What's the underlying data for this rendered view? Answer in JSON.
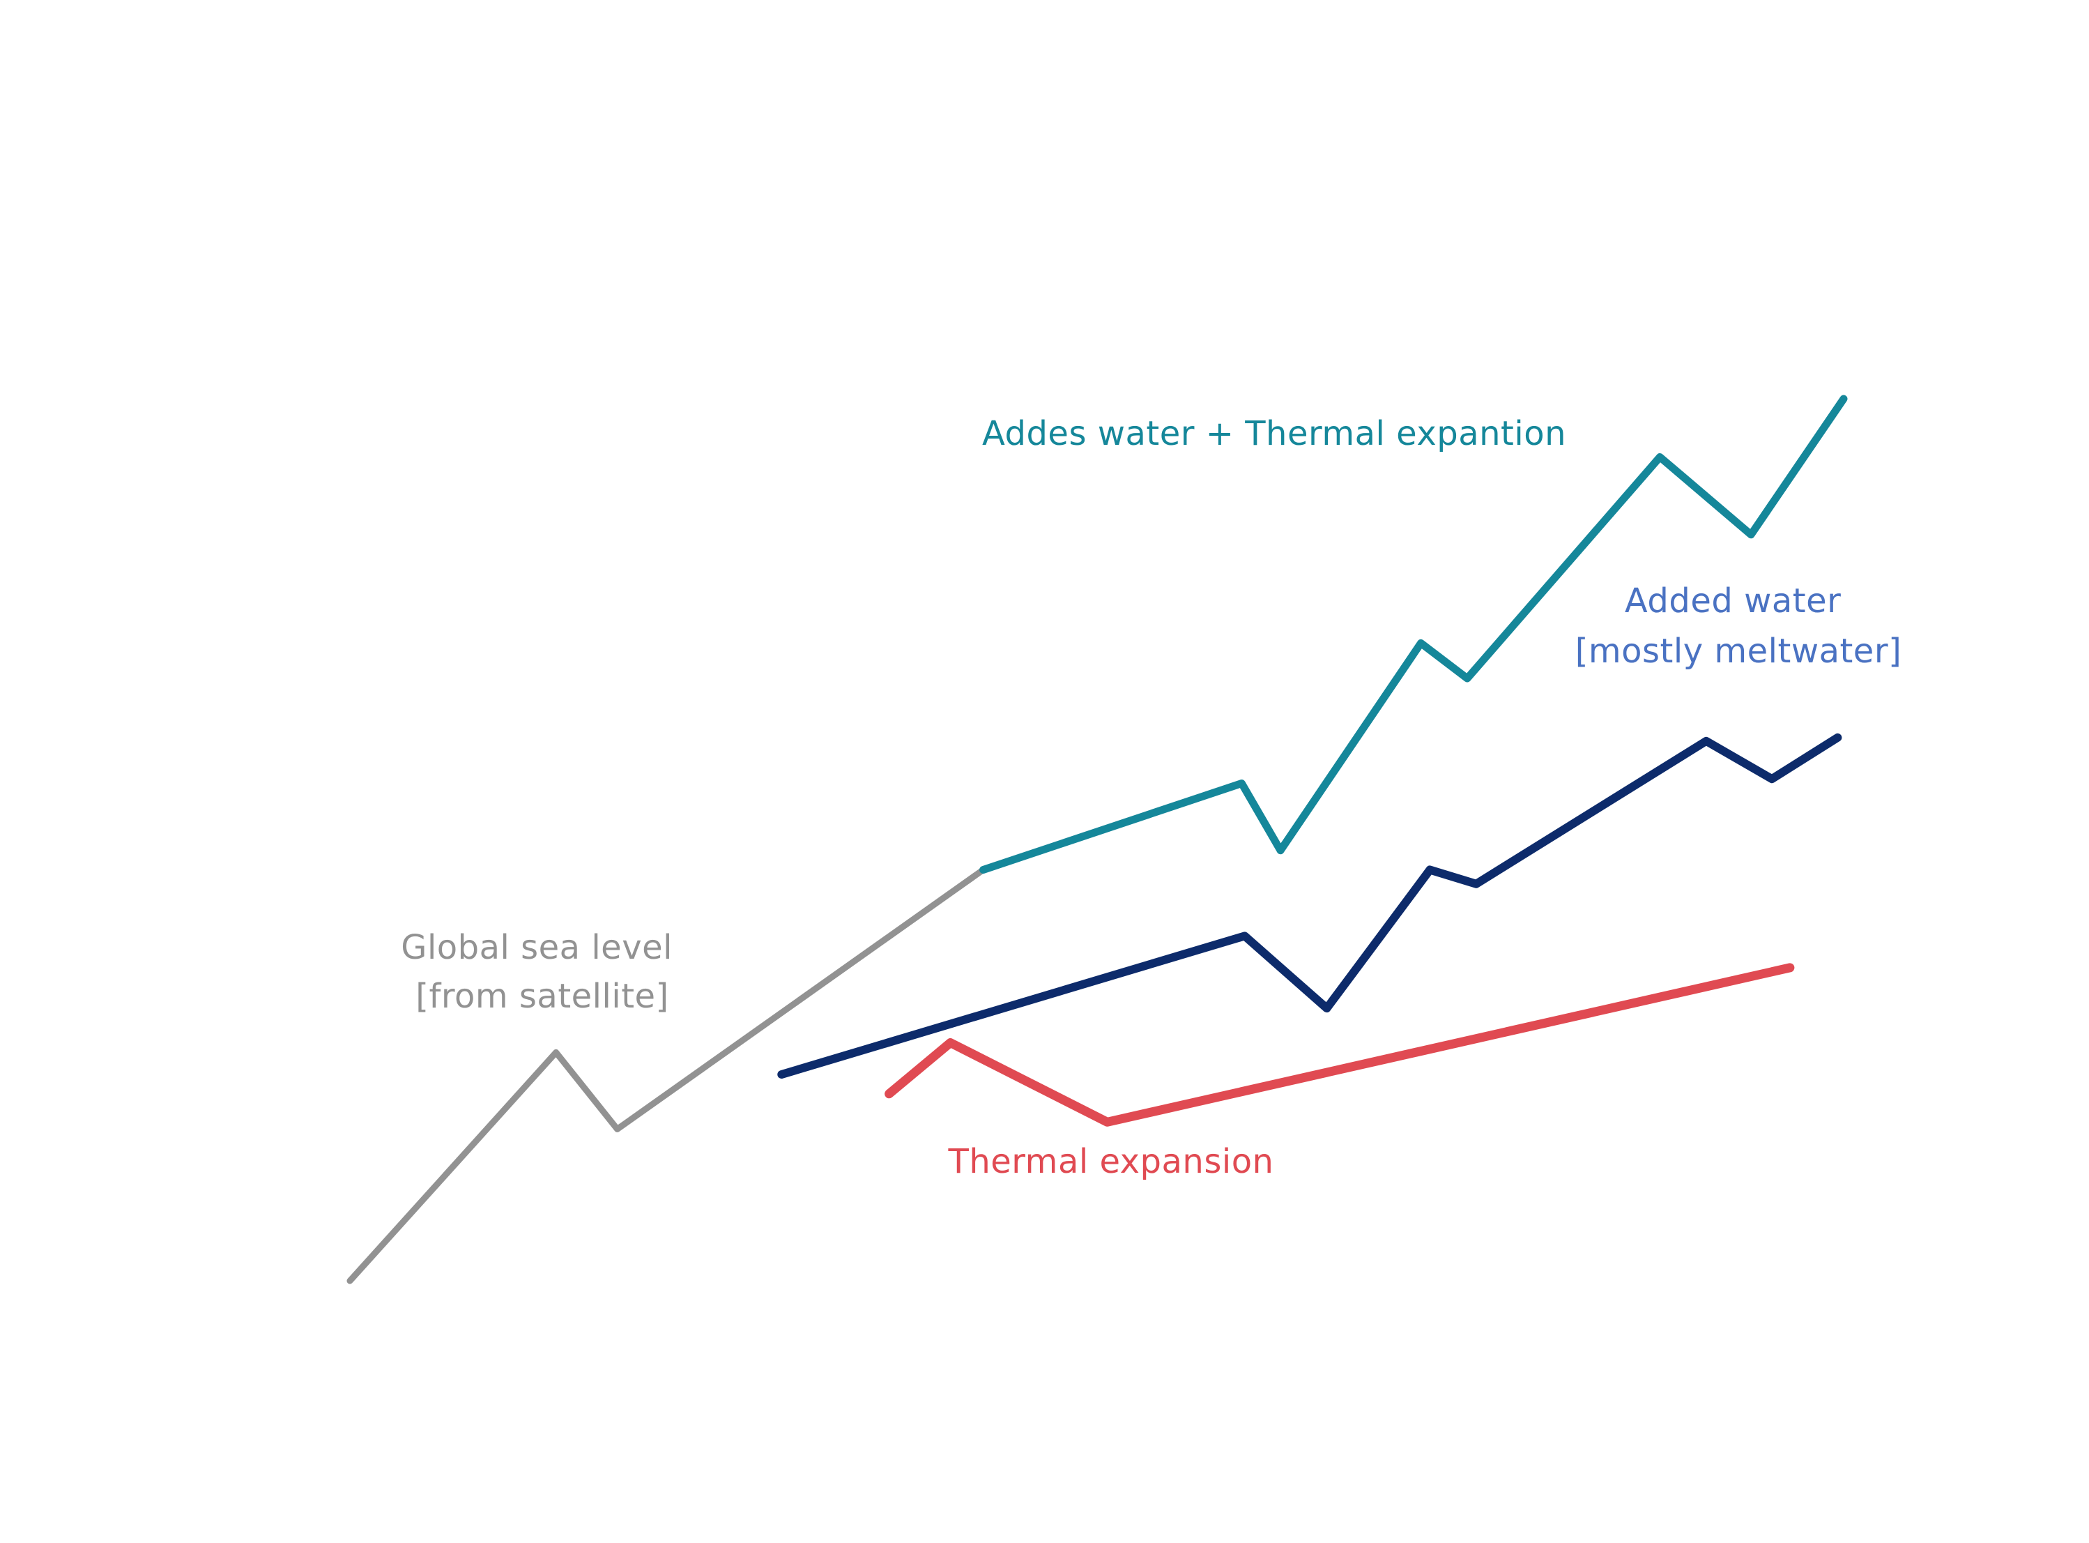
{
  "chart_data": {
    "type": "line",
    "title": "",
    "xlabel": "",
    "ylabel": "",
    "grid": false,
    "legend": "none",
    "x_unit": "position 0-100",
    "xlim": [
      0,
      100
    ],
    "ylim": [
      0,
      100
    ],
    "series": [
      {
        "key": "global",
        "name": "Global sea level [from satellite]",
        "label_lines": [
          "Global sea level",
          "[from satellite]"
        ],
        "color": "#929292",
        "points": [
          [
            0,
            0
          ],
          [
            13.8,
            25.9
          ],
          [
            17.9,
            17.2
          ],
          [
            42.4,
            46.6
          ]
        ]
      },
      {
        "key": "combined",
        "name": "Addes water + Thermal expantion",
        "label_lines": [
          "Addes water + Thermal expantion"
        ],
        "color": "#15879a",
        "points": [
          [
            42.4,
            46.6
          ],
          [
            59.7,
            56.4
          ],
          [
            62.3,
            48.8
          ],
          [
            71.7,
            72.3
          ],
          [
            74.8,
            68.3
          ],
          [
            87.7,
            93.4
          ],
          [
            93.8,
            84.6
          ],
          [
            100,
            100
          ]
        ]
      },
      {
        "key": "added_water",
        "name": "Added water [mostly meltwater]",
        "label_lines": [
          "Added water",
          "[mostly meltwater]"
        ],
        "label_color": "#4a72c2",
        "color": "#0d2b6b",
        "points": [
          [
            28.9,
            23.4
          ],
          [
            59.9,
            39.1
          ],
          [
            65.4,
            30.9
          ],
          [
            72.3,
            46.6
          ],
          [
            75.4,
            45.0
          ],
          [
            90.8,
            61.2
          ],
          [
            95.2,
            56.9
          ],
          [
            99.6,
            61.6
          ]
        ]
      },
      {
        "key": "thermal",
        "name": "Thermal expansion",
        "label_lines": [
          "Thermal expansion"
        ],
        "color": "#e04a52",
        "points": [
          [
            36.1,
            21.2
          ],
          [
            40.2,
            27.0
          ],
          [
            50.7,
            18.0
          ],
          [
            96.4,
            35.5
          ]
        ]
      }
    ]
  }
}
